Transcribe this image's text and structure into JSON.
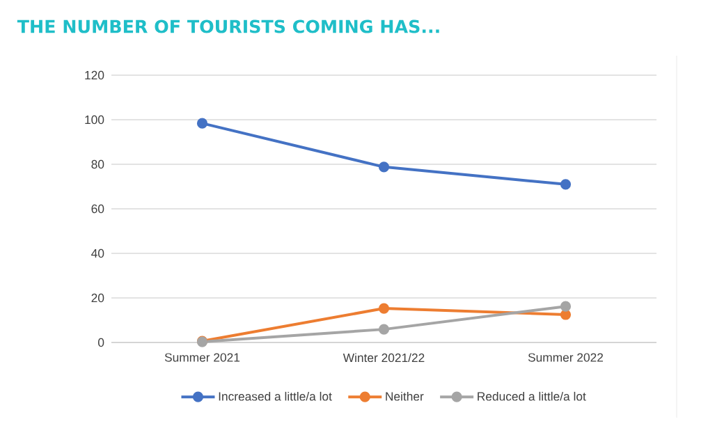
{
  "chart_data": {
    "type": "line",
    "title": "THE NUMBER OF TOURISTS COMING HAS...",
    "categories": [
      "Summer 2021",
      "Winter 2021/22",
      "Summer 2022"
    ],
    "series": [
      {
        "name": "Increased a little/a lot",
        "color": "#4472c4",
        "values": [
          98.4,
          78.8,
          71
        ]
      },
      {
        "name": "Neither",
        "color": "#ed7d31",
        "values": [
          0.6,
          15.3,
          12.5
        ]
      },
      {
        "name": "Reduced a little/a lot",
        "color": "#a5a5a5",
        "values": [
          0.3,
          5.9,
          16.2
        ]
      }
    ],
    "ylim": [
      0,
      120
    ],
    "yticks": [
      0,
      20,
      40,
      60,
      80,
      100,
      120
    ],
    "grid": "y",
    "legend": "bottom",
    "marker": "circle",
    "line_style": "solid"
  }
}
